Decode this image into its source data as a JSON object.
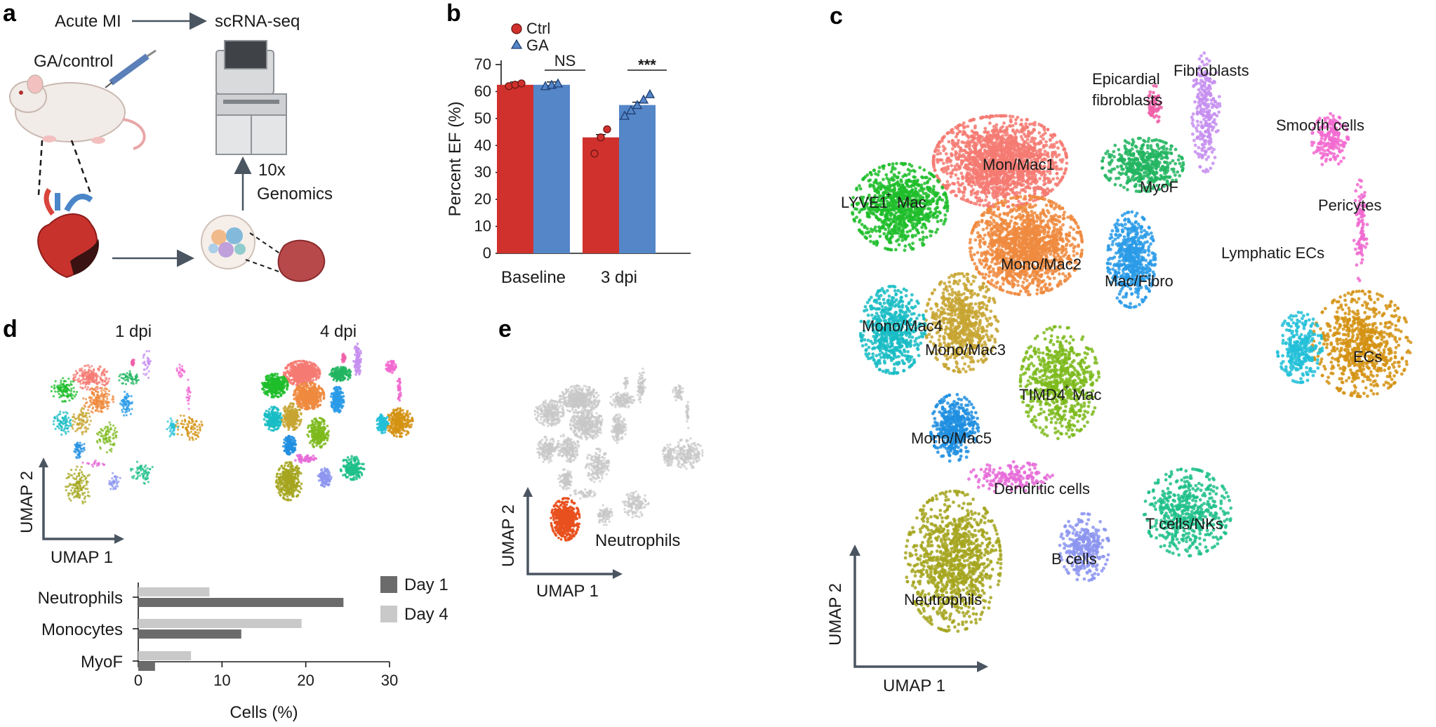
{
  "panels": {
    "a": {
      "letter": "a",
      "acute_mi": "Acute MI",
      "scrnaseq": "scRNA-seq",
      "treatment": "GA/control",
      "genomics_line1": "10x",
      "genomics_line2": "Genomics"
    },
    "b": {
      "letter": "b"
    },
    "c": {
      "letter": "c",
      "umap1": "UMAP 1",
      "umap2": "UMAP 2",
      "clusters": [
        {
          "label": "Fibroblasts",
          "color": "#c58ef0"
        },
        {
          "label": "Epicardial",
          "color": "#ee5fa8"
        },
        {
          "label": "fibroblasts",
          "color": "#ee5fa8"
        },
        {
          "label": "Smooth cells",
          "color": "#f26ad0"
        },
        {
          "label": "Pericytes",
          "color": "#f06ad0"
        },
        {
          "label": "Mon/Mac1",
          "color": "#f47a72"
        },
        {
          "label": "LYVE1",
          "color": "#1ebd2a"
        },
        {
          "label": "+",
          "color": "#1ebd2a"
        },
        {
          "label": "Mac",
          "color": "#1ebd2a"
        },
        {
          "label": "MyoF",
          "color": "#22b560"
        },
        {
          "label": "Lymphatic ECs",
          "color": "#22c0d8"
        },
        {
          "label": "Mono/Mac2",
          "color": "#ef8a3e"
        },
        {
          "label": "Mac/Fibro",
          "color": "#2a9be8"
        },
        {
          "label": "Mono/Mac4",
          "color": "#19bcc4"
        },
        {
          "label": "Mono/Mac3",
          "color": "#c7a531"
        },
        {
          "label": "ECs",
          "color": "#d39212"
        },
        {
          "label": "TIMD4",
          "color": "#7cba1c"
        },
        {
          "label": "Mono/Mac5",
          "color": "#1e8ee0"
        },
        {
          "label": "Dendritic cells",
          "color": "#e66bd8"
        },
        {
          "label": "T cells/NKs",
          "color": "#1fbf8a"
        },
        {
          "label": "B cells",
          "color": "#8c95f0"
        },
        {
          "label": "Neutrophils",
          "color": "#a4a51e"
        }
      ]
    },
    "d": {
      "letter": "d",
      "day1_title": "1 dpi",
      "day4_title": "4 dpi",
      "umap1": "UMAP 1",
      "umap2": "UMAP 2"
    },
    "e": {
      "letter": "e",
      "umap1": "UMAP 1",
      "umap2": "UMAP 2",
      "highlight": "Neutrophils",
      "highlight_color": "#e8501e",
      "background_color": "#c8c8c8"
    }
  },
  "chart_data": [
    {
      "type": "bar",
      "panel": "b",
      "ylabel": "Percent EF (%)",
      "categories": [
        "Baseline",
        "3 dpi"
      ],
      "ylim": [
        0,
        70
      ],
      "yticks": [
        "0",
        "10",
        "20",
        "30",
        "40",
        "50",
        "60",
        "70"
      ],
      "series": [
        {
          "name": "Ctrl",
          "values": [
            62.5,
            43
          ],
          "color": "#d0312d",
          "points": [
            [
              62,
              62.5,
              63
            ],
            [
              37,
              43,
              46
            ]
          ]
        },
        {
          "name": "GA",
          "values": [
            62.5,
            55
          ],
          "color": "#5486c8",
          "points": [
            [
              62,
              62.5,
              63
            ],
            [
              51,
              53,
              55,
              57,
              59
            ]
          ]
        }
      ],
      "annotations": [
        "NS",
        "***"
      ]
    },
    {
      "type": "bar",
      "panel": "d",
      "orientation": "horizontal",
      "xlabel": "Cells (%)",
      "categories": [
        "Neutrophils",
        "Monocytes",
        "MyoF"
      ],
      "xlim": [
        0,
        30
      ],
      "xticks": [
        "0",
        "10",
        "20",
        "30"
      ],
      "series": [
        {
          "name": "Day 1",
          "values": [
            24.5,
            12.3,
            2.0
          ],
          "color": "#6b6b6b"
        },
        {
          "name": "Day 4",
          "values": [
            8.5,
            19.5,
            6.3
          ],
          "color": "#c9c9c9"
        }
      ]
    }
  ]
}
